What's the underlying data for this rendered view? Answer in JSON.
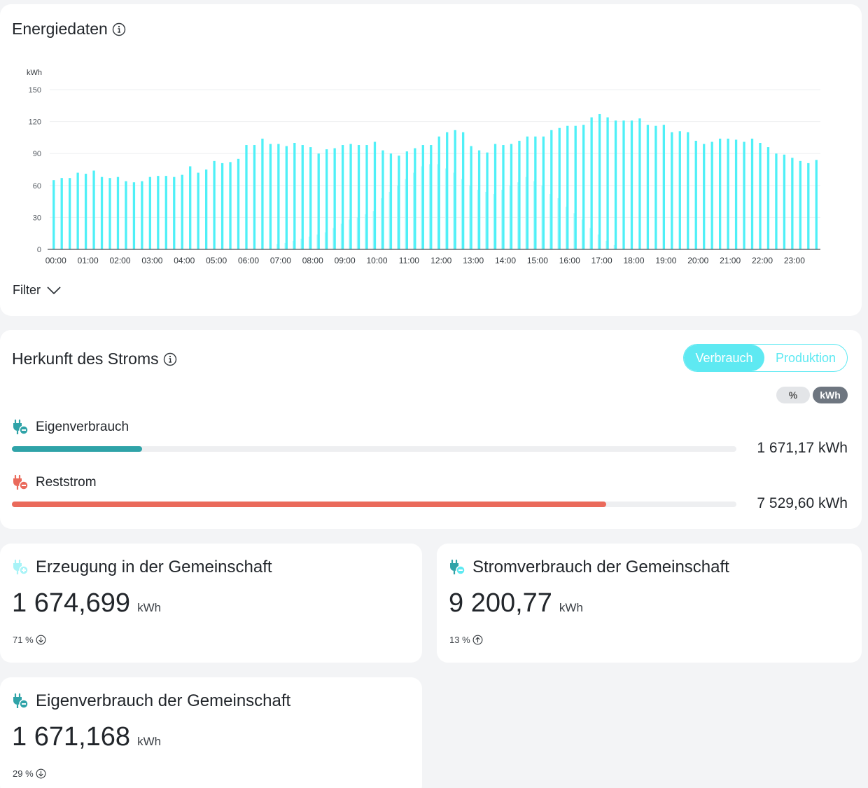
{
  "energy": {
    "title": "Energiedaten",
    "filter_label": "Filter",
    "chart_data": {
      "type": "bar",
      "ylabel": "kWh",
      "ylim": [
        0,
        150
      ],
      "yticks": [
        0,
        30,
        60,
        90,
        120,
        150
      ],
      "xticks": [
        "00:00",
        "01:00",
        "02:00",
        "03:00",
        "04:00",
        "05:00",
        "06:00",
        "07:00",
        "08:00",
        "09:00",
        "10:00",
        "11:00",
        "12:00",
        "13:00",
        "14:00",
        "15:00",
        "16:00",
        "17:00",
        "18:00",
        "19:00",
        "20:00",
        "21:00",
        "22:00",
        "23:00"
      ],
      "grid": true,
      "series": [
        {
          "color": "#4ff0f7",
          "values": [
            65,
            67,
            67,
            72,
            71,
            74,
            68,
            67,
            68,
            64,
            63,
            64,
            68,
            69,
            69,
            68,
            70,
            78,
            72,
            75,
            83,
            81,
            82,
            85,
            98,
            98,
            104,
            99,
            99,
            97,
            100,
            98,
            96,
            90,
            94,
            95,
            98,
            99,
            98,
            98,
            101,
            93,
            90,
            88,
            92,
            95,
            98,
            98,
            106,
            110,
            112,
            110,
            97,
            93,
            91,
            99,
            98,
            99,
            102,
            106,
            106,
            106,
            112,
            114,
            116,
            116,
            117,
            124,
            127,
            124,
            121,
            121,
            121,
            123,
            117,
            116,
            117,
            110,
            111,
            110,
            102,
            99,
            101,
            104,
            104,
            103,
            101,
            104,
            100,
            96,
            90,
            89,
            86,
            83,
            81,
            84
          ]
        },
        {
          "color": "#b4f8fb",
          "values": [
            0,
            0,
            0,
            0,
            0,
            0,
            0,
            0,
            0,
            0,
            0,
            0,
            0,
            0,
            0,
            0,
            0,
            0,
            0,
            0,
            0,
            0,
            0,
            0,
            0,
            0,
            0,
            0,
            5,
            6,
            8,
            10,
            12,
            14,
            16,
            20,
            24,
            28,
            30,
            33,
            36,
            48,
            54,
            60,
            66,
            72,
            78,
            80,
            80,
            76,
            72,
            66,
            60,
            56,
            54,
            52,
            56,
            60,
            63,
            68,
            64,
            60,
            52,
            48,
            40,
            34,
            28,
            20,
            14,
            8,
            4,
            0,
            0,
            0,
            0,
            0,
            0,
            0,
            0,
            0,
            0,
            0,
            0,
            0,
            0,
            0,
            0,
            0,
            0,
            0,
            0,
            0,
            0,
            0,
            0,
            0
          ]
        }
      ]
    }
  },
  "origin": {
    "title": "Herkunft des Stroms",
    "toggle": {
      "active": "Verbrauch",
      "inactive": "Produktion"
    },
    "unit_switch": {
      "percent": "%",
      "kwh": "kWh"
    },
    "rows": [
      {
        "label": "Eigenverbrauch",
        "value": "1 671,17 kWh",
        "fraction": 0.18,
        "color": "#2fa3a8"
      },
      {
        "label": "Reststrom",
        "value": "7 529,60 kWh",
        "fraction": 0.82,
        "color": "#ea6a5b"
      }
    ]
  },
  "stats": {
    "generation": {
      "title": "Erzeugung in der Gemeinschaft",
      "value": "1 674,699",
      "unit": "kWh",
      "pct": "71 %"
    },
    "consumption": {
      "title": "Stromverbrauch der Gemeinschaft",
      "value": "9 200,77",
      "unit": "kWh",
      "pct": "13 %"
    },
    "self": {
      "title": "Eigenverbrauch der Gemeinschaft",
      "value": "1 671,168",
      "unit": "kWh",
      "pct": "29 %"
    }
  },
  "colors": {
    "accent": "#5ee9f2",
    "teal": "#2fa3a8",
    "red": "#ea6a5b"
  }
}
